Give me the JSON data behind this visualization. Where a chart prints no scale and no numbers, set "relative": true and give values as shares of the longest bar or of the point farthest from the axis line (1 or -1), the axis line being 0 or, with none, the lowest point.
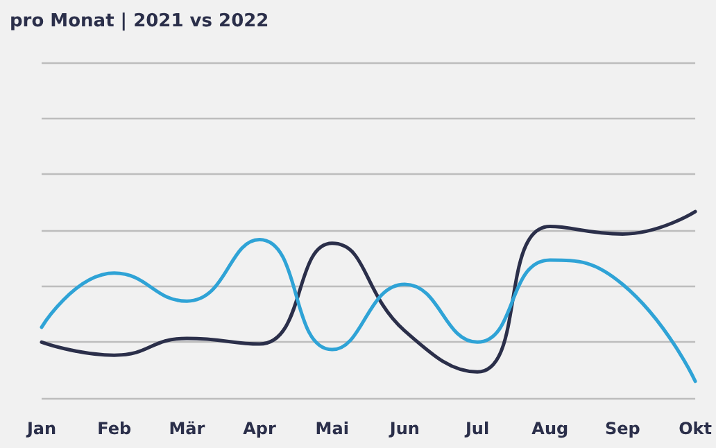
{
  "chart_data": {
    "type": "line",
    "title": "pro Monat | 2021 vs 2022",
    "relative": true,
    "categories": [
      "Jan",
      "Feb",
      "Mär",
      "Apr",
      "Mai",
      "Jun",
      "Jul",
      "Aug",
      "Sep",
      "Okt"
    ],
    "series": [
      {
        "color": "#2b2f4a",
        "values": [
          0.3,
          0.23,
          0.32,
          0.29,
          0.83,
          0.36,
          0.14,
          0.92,
          0.88,
          1.0
        ]
      },
      {
        "color": "#2fa3d6",
        "values": [
          0.38,
          0.67,
          0.52,
          0.85,
          0.26,
          0.61,
          0.3,
          0.74,
          0.61,
          0.09
        ]
      }
    ],
    "grid": "y",
    "marker": "none",
    "line_style": "solid"
  }
}
